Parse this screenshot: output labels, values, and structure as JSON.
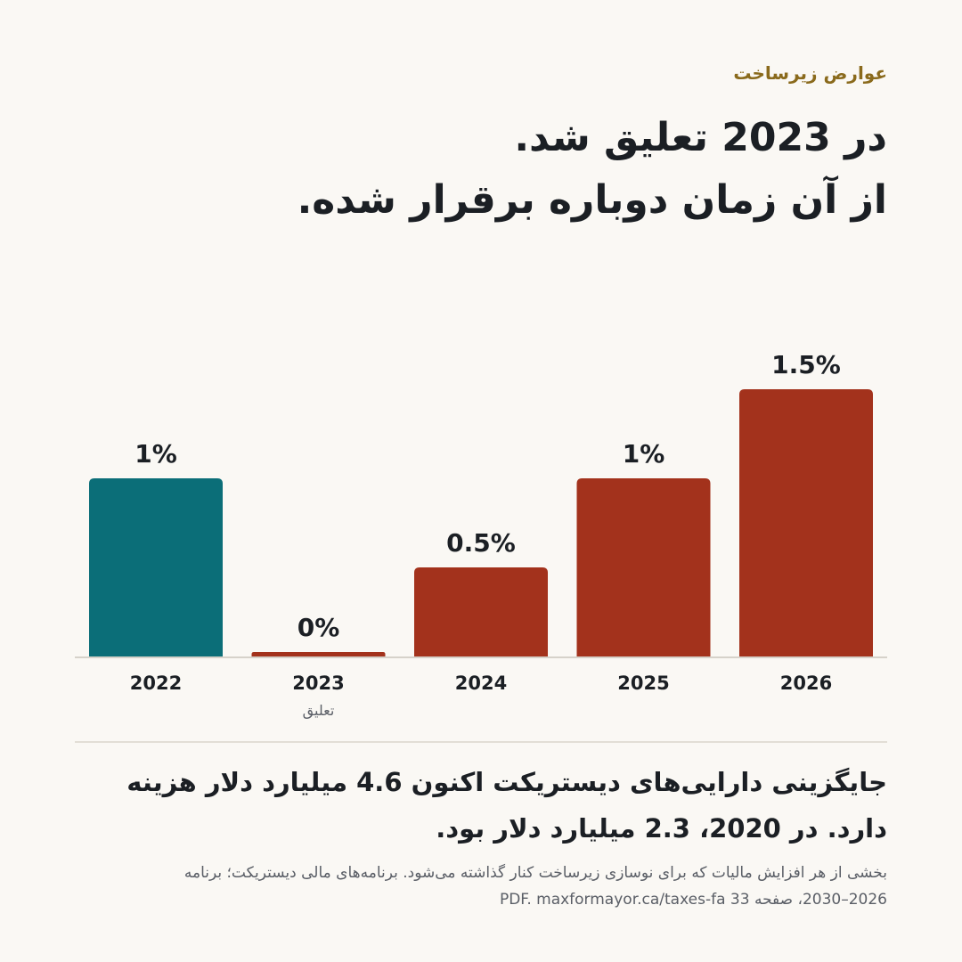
{
  "kicker": "عوارض زیرساخت",
  "headline": {
    "line1": "در 2023 تعلیق شد.",
    "line2": "از آن زمان دوباره برقرار شده."
  },
  "chart_data": {
    "type": "bar",
    "categories": [
      "2022",
      "2023",
      "2024",
      "2025",
      "2026"
    ],
    "values": [
      1,
      0,
      0.5,
      1,
      1.5
    ],
    "value_labels": [
      "1%",
      "0%",
      "0.5%",
      "1%",
      "1.5%"
    ],
    "sublabels": [
      "",
      "تعلیق",
      "",
      "",
      ""
    ],
    "colors": [
      "#0b6e78",
      "#a3321c",
      "#a3321c",
      "#a3321c",
      "#a3321c"
    ],
    "ylim": [
      0,
      1.5
    ],
    "grid": false,
    "title": "",
    "xlabel": "",
    "ylabel": ""
  },
  "body": {
    "text": "جایگزینی دارایی‌های دیستریکت اکنون 4.6 میلیارد دلار هزینه دارد. در 2020، 2.3 میلیارد دلار بود."
  },
  "footnote": {
    "line1": "بخشی از هر افزایش مالیات که برای نوسازی زیرساخت کنار گذاشته می‌شود. برنامه‌های مالی دیستریکت؛ برنامه",
    "line2": "2026–2030، صفحه 33 PDF. maxformayor.ca/taxes-fa"
  }
}
